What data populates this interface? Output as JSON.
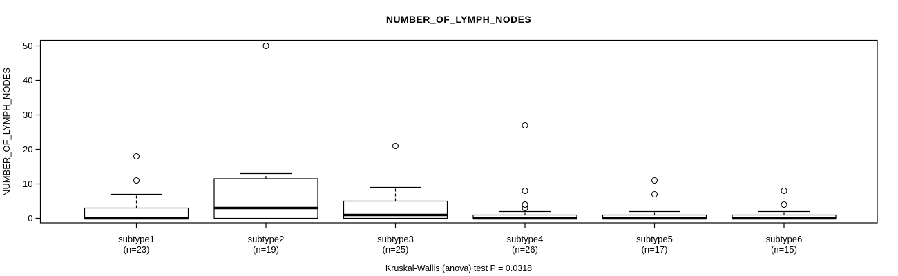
{
  "chart_data": {
    "type": "boxplot",
    "title": "NUMBER_OF_LYMPH_NODES",
    "ylabel": "NUMBER_OF_LYMPH_NODES",
    "caption": "Kruskal-Wallis (anova) test P = 0.0318",
    "ylim": [
      0,
      50
    ],
    "yticks": [
      0,
      10,
      20,
      30,
      40,
      50
    ],
    "grid": false,
    "legend": null,
    "colors": {
      "stroke": "#000000",
      "box_fill": "#ffffff",
      "text": "#000000",
      "background": "#ffffff"
    },
    "groups": [
      {
        "label": "subtype1",
        "n_label": "(n=23)",
        "n": 23,
        "q1": 0,
        "median": 0,
        "q3": 3,
        "whisker_low": 0,
        "whisker_high": 7,
        "outliers": [
          11,
          18
        ]
      },
      {
        "label": "subtype2",
        "n_label": "(n=19)",
        "n": 19,
        "q1": 0,
        "median": 3,
        "q3": 11.5,
        "whisker_low": 0,
        "whisker_high": 13,
        "outliers": [
          50
        ]
      },
      {
        "label": "subtype3",
        "n_label": "(n=25)",
        "n": 25,
        "q1": 0,
        "median": 1,
        "q3": 5,
        "whisker_low": 0,
        "whisker_high": 9,
        "outliers": [
          21
        ]
      },
      {
        "label": "subtype4",
        "n_label": "(n=26)",
        "n": 26,
        "q1": 0,
        "median": 0,
        "q3": 1,
        "whisker_low": 0,
        "whisker_high": 2,
        "outliers": [
          3,
          4,
          8,
          27
        ]
      },
      {
        "label": "subtype5",
        "n_label": "(n=17)",
        "n": 17,
        "q1": 0,
        "median": 0,
        "q3": 1,
        "whisker_low": 0,
        "whisker_high": 2,
        "outliers": [
          7,
          11
        ]
      },
      {
        "label": "subtype6",
        "n_label": "(n=15)",
        "n": 15,
        "q1": 0,
        "median": 0,
        "q3": 1,
        "whisker_low": 0,
        "whisker_high": 2,
        "outliers": [
          4,
          8
        ]
      }
    ]
  }
}
